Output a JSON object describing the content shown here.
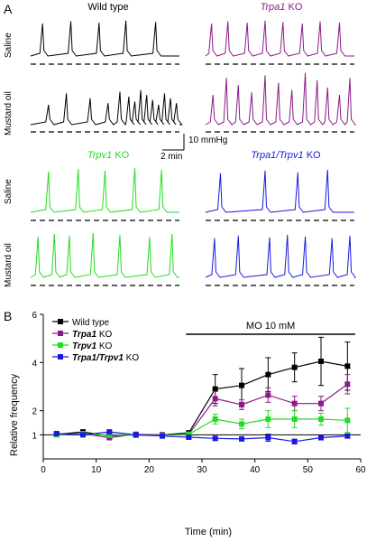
{
  "panels": {
    "a_letter": "A",
    "b_letter": "B"
  },
  "panel_a": {
    "groups": [
      {
        "key": "wt",
        "title_pre": "Wild type",
        "title_italic": "",
        "title_post": "",
        "color": "#000000"
      },
      {
        "key": "trpa1",
        "title_pre": "",
        "title_italic": "Trpa1",
        "title_post": " KO",
        "color": "#8b1a89"
      },
      {
        "key": "trpv1",
        "title_pre": "",
        "title_italic": "Trpv1",
        "title_post": " KO",
        "color": "#22dd22"
      },
      {
        "key": "dko",
        "title_pre": "",
        "title_italic": "Trpa1/Trpv1",
        "title_post": " KO",
        "color": "#1a1adf"
      }
    ],
    "row_labels": {
      "saline": "Saline",
      "mustard": "Mustard oil"
    },
    "scale_bar": {
      "vertical": "10 mmHg",
      "horizontal": "2 min"
    }
  },
  "chart_data": {
    "type": "line",
    "xlabel": "Time (min)",
    "ylabel": "Relative frequency",
    "xlim": [
      0,
      60
    ],
    "ylim": [
      0,
      6
    ],
    "xticks": [
      0,
      10,
      20,
      30,
      40,
      50,
      60
    ],
    "yticks": [
      1,
      2,
      4,
      6
    ],
    "reference_line": 1,
    "annotation": {
      "text": "MO 10 mM",
      "x_start": 28,
      "x_end": 60
    },
    "legend_placement": "top-left",
    "x": [
      2.5,
      7.5,
      12.5,
      17.5,
      22.5,
      27.5,
      32.5,
      37.5,
      42.5,
      47.5,
      52.5,
      57.5
    ],
    "series": [
      {
        "name": "Wild type",
        "name_italic": "",
        "name_post": "Wild type",
        "color": "#000000",
        "values": [
          1.02,
          1.12,
          0.95,
          1.0,
          1.0,
          1.08,
          2.9,
          3.05,
          3.5,
          3.8,
          4.05,
          3.85
        ],
        "errors": [
          0.05,
          0.08,
          0.05,
          0.05,
          0.05,
          0.07,
          0.6,
          0.7,
          0.7,
          0.6,
          1.0,
          1.0
        ]
      },
      {
        "name": "Trpa1 KO",
        "name_italic": "Trpa1",
        "name_post": " KO",
        "color": "#8b1a89",
        "values": [
          1.03,
          1.05,
          0.88,
          1.02,
          1.0,
          1.02,
          2.5,
          2.25,
          2.65,
          2.3,
          2.3,
          3.1
        ],
        "errors": [
          0.04,
          0.05,
          0.05,
          0.04,
          0.04,
          0.05,
          0.3,
          0.2,
          0.3,
          0.3,
          0.3,
          0.4
        ]
      },
      {
        "name": "Trpv1 KO",
        "name_italic": "Trpv1",
        "name_post": " KO",
        "color": "#22dd22",
        "values": [
          1.0,
          1.05,
          0.98,
          0.98,
          0.97,
          1.02,
          1.65,
          1.45,
          1.65,
          1.65,
          1.65,
          1.6
        ],
        "errors": [
          0.04,
          0.05,
          0.04,
          0.04,
          0.04,
          0.05,
          0.2,
          0.2,
          0.35,
          0.35,
          0.25,
          0.5
        ]
      },
      {
        "name": "Trpa1/Trpv1 KO",
        "name_italic": "Trpa1/Trpv1",
        "name_post": " KO",
        "color": "#1a1adf",
        "values": [
          1.05,
          1.0,
          1.12,
          1.0,
          0.95,
          0.9,
          0.85,
          0.83,
          0.88,
          0.72,
          0.88,
          0.95
        ],
        "errors": [
          0.04,
          0.04,
          0.08,
          0.04,
          0.04,
          0.05,
          0.08,
          0.08,
          0.15,
          0.1,
          0.08,
          0.08
        ]
      }
    ]
  }
}
